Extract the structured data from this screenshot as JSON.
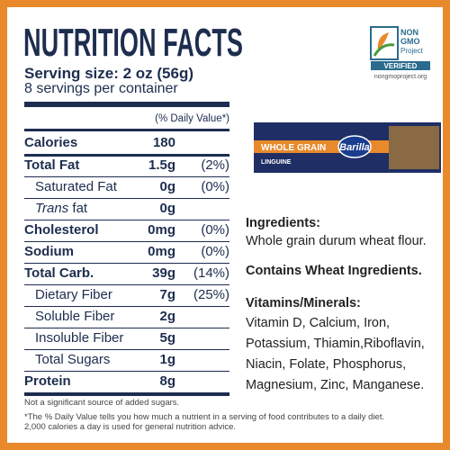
{
  "header": {
    "title": "NUTRITION FACTS",
    "serving_size": "Serving size: 2 oz (56g)",
    "servings": "8 servings per container"
  },
  "badge": {
    "line1": "NON",
    "line2": "GMO",
    "line3": "Project",
    "verified": "VERIFIED",
    "url": "nongmoproject.org"
  },
  "table": {
    "daily_value_header": "(% Daily Value*)",
    "rows": [
      {
        "label": "Calories",
        "amount": "180"
      },
      {
        "label": "Total Fat",
        "amount": "1.5g",
        "dv": "(2%)"
      },
      {
        "label": "Saturated Fat",
        "amount": "0g",
        "dv": "(0%)"
      },
      {
        "italic": "Trans",
        "label": "fat",
        "amount": "0g"
      },
      {
        "label": "Cholesterol",
        "amount": "0mg",
        "dv": "(0%)"
      },
      {
        "label": "Sodium",
        "amount": "0mg",
        "dv": "(0%)"
      },
      {
        "label": "Total Carb.",
        "amount": "39g",
        "dv": "(14%)"
      },
      {
        "label": "Dietary Fiber",
        "amount": "7g",
        "dv": "(25%)"
      },
      {
        "label": "Soluble Fiber",
        "amount": "2g"
      },
      {
        "label": "Insoluble Fiber",
        "amount": "5g"
      },
      {
        "label": "Total Sugars",
        "amount": "1g"
      },
      {
        "label": "Protein",
        "amount": "8g"
      }
    ],
    "footnotes": [
      "Not a significant source of added sugars.",
      "*The % Daily Value tells you how much a nutrient in a serving of food contributes to a daily diet.",
      "2,000 calories a day is used for general nutrition advice."
    ]
  },
  "product": {
    "brand": "Barilla",
    "variety": "WHOLE GRAIN",
    "shape": "LINGUINE"
  },
  "info": {
    "ingredients_title": "Ingredients:",
    "ingredients": "Whole grain durum wheat flour.",
    "allergen": "Contains Wheat Ingredients.",
    "vitamins_title": "Vitamins/Minerals:",
    "vitamins": [
      "Vitamin D, Calcium, Iron,",
      "Potassium, Thiamin,Riboflavin,",
      "Niacin, Folate, Phosphorus,",
      "Magnesium, Zinc, Manganese."
    ]
  }
}
